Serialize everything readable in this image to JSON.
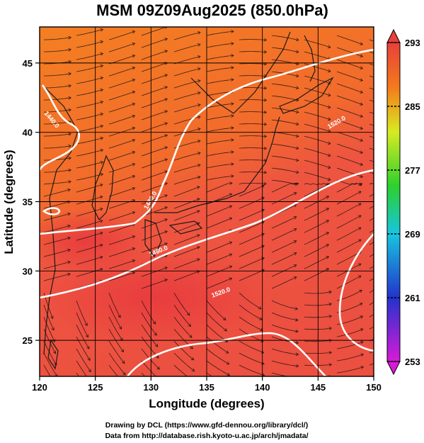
{
  "chart_data": {
    "type": "heatmap",
    "title": "MSM 09Z09Aug2025 (850.0hPa)",
    "xlabel": "Longitude (degrees)",
    "ylabel": "Latitude  (degrees)",
    "xlim": [
      120,
      150
    ],
    "ylim": [
      22.4,
      47.6
    ],
    "xticks": [
      120,
      125,
      130,
      135,
      140,
      145,
      150
    ],
    "yticks": [
      25,
      30,
      35,
      40,
      45
    ],
    "grid": true,
    "colorbar": {
      "min": 253,
      "max": 293,
      "ticks": [
        253,
        261,
        269,
        277,
        285,
        293
      ],
      "extend": "both",
      "palette": [
        "#d81ad8",
        "#2233cc",
        "#17c5e0",
        "#2dd02d",
        "#d8ea22",
        "#f47a1c",
        "#e8403a"
      ]
    },
    "shading": {
      "north_warm": "#f47f22",
      "south_hot": "#ee5540",
      "hot_core": "#e8393e",
      "land_high": "#e0aa3a"
    },
    "contours": {
      "color": "#ffffff",
      "labels": [
        "1440.0",
        "1480.0",
        "1520.0",
        "1480.0",
        "1520.0"
      ]
    },
    "credits": [
      "Drawing by DCL (https://www.gfd-dennou.org/library/dcl/)",
      "Data from http://database.rish.kyoto-u.ac.jp/arch/jmadata/"
    ]
  }
}
